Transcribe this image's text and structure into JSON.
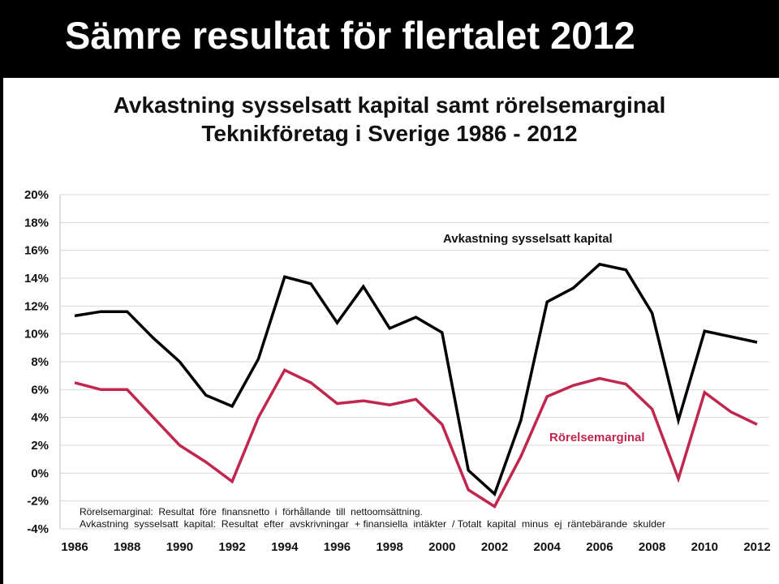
{
  "slide": {
    "title": "Sämre resultat för flertalet 2012"
  },
  "chart_data": {
    "type": "line",
    "title": "Avkastning sysselsatt kapital samt rörelsemarginal",
    "subtitle": "Teknikföretag i Sverige 1986 - 2012",
    "x": [
      1986,
      1987,
      1988,
      1989,
      1990,
      1991,
      1992,
      1993,
      1994,
      1995,
      1996,
      1997,
      1998,
      1999,
      2000,
      2001,
      2002,
      2003,
      2004,
      2005,
      2006,
      2007,
      2008,
      2009,
      2010,
      2011,
      2012
    ],
    "x_tick_labels": [
      "1986",
      "1988",
      "1990",
      "1992",
      "1994",
      "1996",
      "1998",
      "2000",
      "2002",
      "2004",
      "2006",
      "2008",
      "2010",
      "2012"
    ],
    "y_tick_labels": [
      "20%",
      "18%",
      "16%",
      "14%",
      "12%",
      "10%",
      "8%",
      "6%",
      "4%",
      "2%",
      "0%",
      "-2%",
      "-4%"
    ],
    "ylim": [
      -4,
      20
    ],
    "y_tick_step": 2,
    "grid": true,
    "series": [
      {
        "name": "Avkastning sysselsatt kapital",
        "color": "#000000",
        "values": [
          11.3,
          11.6,
          11.6,
          9.7,
          8.0,
          5.6,
          4.8,
          8.2,
          14.1,
          13.6,
          10.8,
          13.4,
          10.4,
          11.2,
          10.1,
          0.2,
          -1.5,
          3.8,
          12.3,
          13.3,
          15.0,
          14.6,
          11.5,
          3.8,
          10.2,
          9.8,
          9.4
        ]
      },
      {
        "name": "Rörelsemarginal",
        "color": "#c0264e",
        "values": [
          6.5,
          6.0,
          6.0,
          4.0,
          2.0,
          0.8,
          -0.6,
          4.0,
          7.4,
          6.5,
          5.0,
          5.2,
          4.9,
          5.3,
          3.5,
          -1.2,
          -2.4,
          1.2,
          5.5,
          6.3,
          6.8,
          6.4,
          4.6,
          -0.4,
          5.8,
          4.4,
          3.5
        ]
      }
    ],
    "notes": [
      "Rörelsemarginal:  Resultat  före  finansnetto  i  förhållande  till  nettoomsättning.",
      "Avkastning  sysselsatt  kapital:  Resultat  efter  avskrivningar  + finansiella  intäkter  / Totalt  kapital  minus  ej  räntebärande  skulder"
    ]
  }
}
